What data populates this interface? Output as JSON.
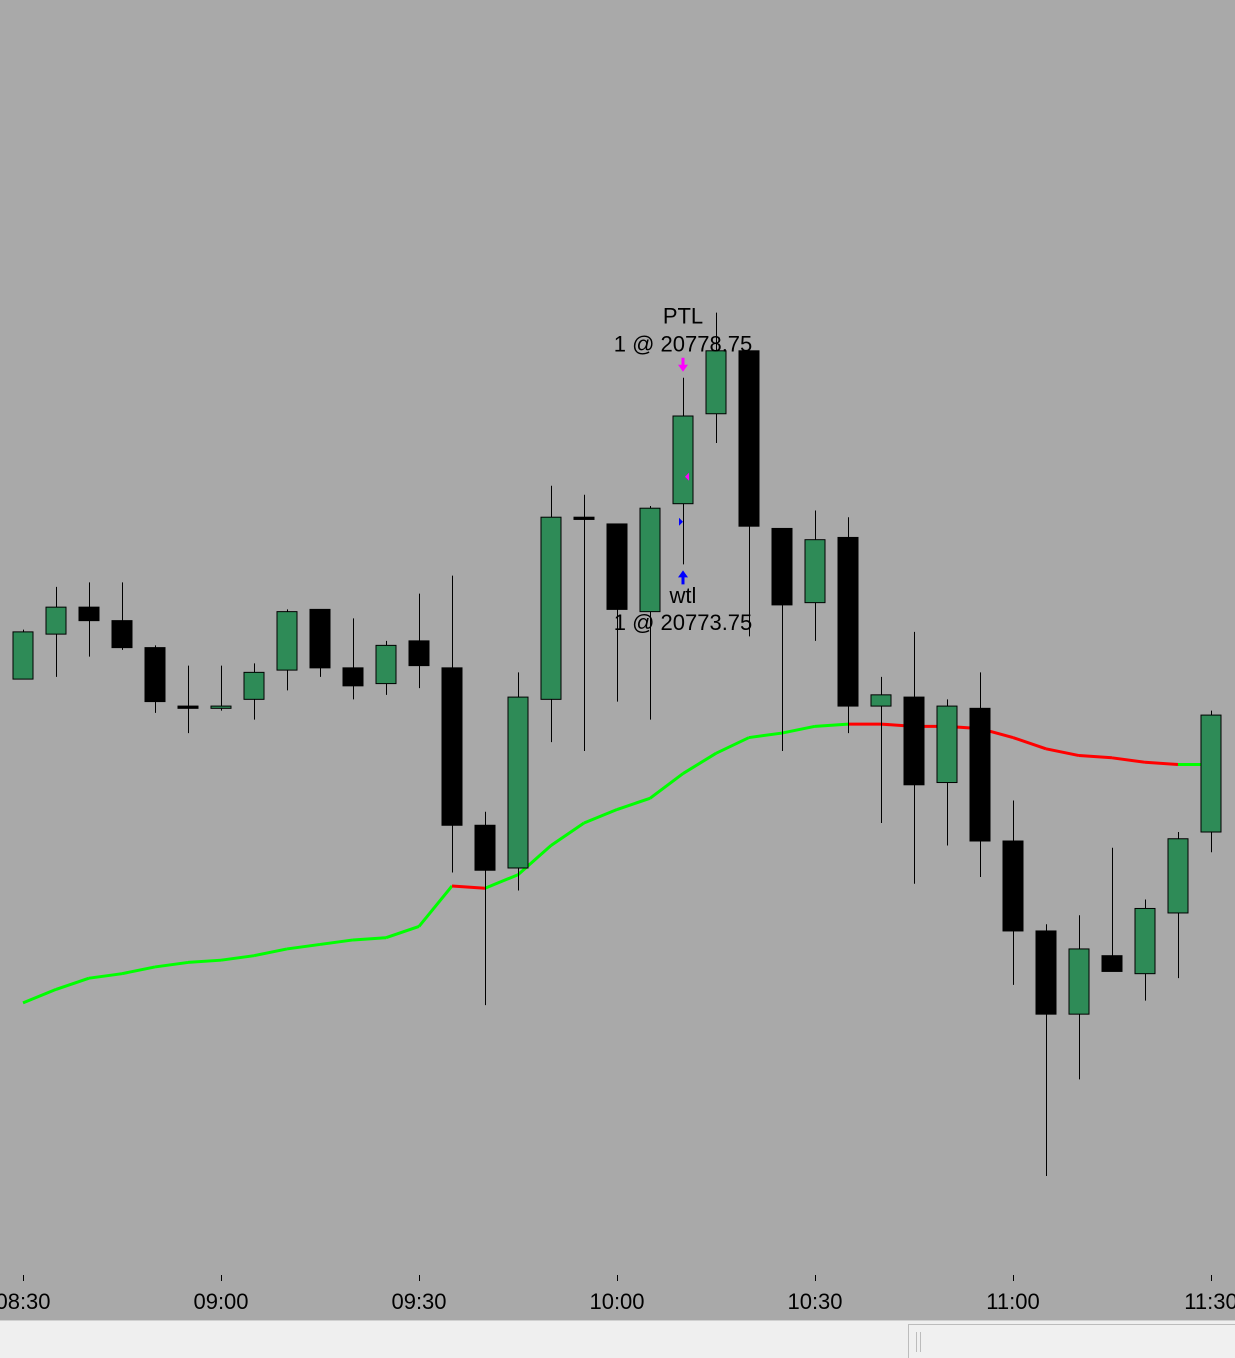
{
  "chart_data": {
    "type": "candlestick",
    "categories": [
      "08:30",
      null,
      null,
      null,
      null,
      null,
      "09:00",
      null,
      null,
      null,
      null,
      null,
      "09:30",
      null,
      null,
      null,
      null,
      null,
      "10:00",
      null,
      null,
      null,
      null,
      null,
      "10:30",
      null,
      null,
      null,
      null,
      null,
      "11:00",
      null,
      null,
      null,
      null,
      null,
      "11:30"
    ],
    "open": [
      20756.25,
      20761.25,
      20764.25,
      20762.75,
      20759.75,
      20753.25,
      20753,
      20754,
      20757.25,
      20764,
      20757.5,
      20755.75,
      20760.5,
      20757.5,
      20740,
      20735.25,
      20754,
      20774.25,
      20773.5,
      20763.75,
      20775.75,
      20785.75,
      20792.75,
      20773,
      20764.75,
      20772,
      20753.25,
      20754.25,
      20744.75,
      20753,
      20738.25,
      20728.25,
      20719,
      20725.5,
      20723.5,
      20730.25,
      20739.25
    ],
    "high": [
      20761.75,
      20766.5,
      20767,
      20767,
      20760,
      20757.75,
      20757.75,
      20758,
      20764,
      20764,
      20763,
      20760.5,
      20765.75,
      20767.75,
      20741.5,
      20757,
      20777.75,
      20776.75,
      20773.5,
      20775.5,
      20789.75,
      20797,
      20792.75,
      20773,
      20775,
      20774.25,
      20756.5,
      20761.5,
      20754,
      20757,
      20742.75,
      20729,
      20730,
      20737.5,
      20731.75,
      20739.25,
      20752.75
    ],
    "low": [
      20756.25,
      20756.5,
      20758.75,
      20759.5,
      20752.5,
      20750.25,
      20752.75,
      20751.75,
      20755,
      20756.5,
      20754,
      20754.5,
      20755.25,
      20734.75,
      20720,
      20732.75,
      20749.25,
      20748.25,
      20753.75,
      20751.75,
      20769,
      20782.5,
      20761,
      20748.25,
      20760.5,
      20750.25,
      20740.25,
      20733.5,
      20737.75,
      20734.25,
      20722.25,
      20701,
      20711.75,
      20723.75,
      20720.5,
      20723,
      20737
    ],
    "close": [
      20761.5,
      20764.25,
      20762.75,
      20759.75,
      20753.75,
      20753,
      20753.25,
      20757,
      20763.75,
      20757.5,
      20755.5,
      20760,
      20757.75,
      20740,
      20735,
      20754.25,
      20774.25,
      20774,
      20764,
      20775.25,
      20785.5,
      20792.75,
      20773.25,
      20764.5,
      20771.75,
      20753.25,
      20754.5,
      20744.5,
      20753.25,
      20738.25,
      20728.25,
      20719,
      20726.25,
      20723.75,
      20730.75,
      20738.5,
      20752.25
    ],
    "up_color": "#2e8b57",
    "down_color": "#000000",
    "line": {
      "values": [
        20720.25,
        20721.75,
        20723,
        20723.5,
        20724.25,
        20724.75,
        20725,
        20725.5,
        20726.25,
        20726.75,
        20727.25,
        20727.5,
        20728.75,
        20733.25,
        20733,
        20734.5,
        20737.75,
        20740.25,
        20741.75,
        20743,
        20745.75,
        20748,
        20749.75,
        20750.25,
        20751,
        20751.25,
        20751.25,
        20751,
        20751,
        20750.75,
        20749.75,
        20748.5,
        20747.75,
        20747.5,
        20747,
        20746.75,
        20746.75
      ],
      "segment_colors": [
        "#00ff00",
        "#00ff00",
        "#00ff00",
        "#00ff00",
        "#00ff00",
        "#00ff00",
        "#00ff00",
        "#00ff00",
        "#00ff00",
        "#00ff00",
        "#00ff00",
        "#00ff00",
        "#00ff00",
        "#ff0000",
        "#00ff00",
        "#00ff00",
        "#00ff00",
        "#00ff00",
        "#00ff00",
        "#00ff00",
        "#00ff00",
        "#00ff00",
        "#00ff00",
        "#00ff00",
        "#00ff00",
        "#ff0000",
        "#ff0000",
        "#ff0000",
        "#ff0000",
        "#ff0000",
        "#ff0000",
        "#ff0000",
        "#ff0000",
        "#ff0000",
        "#ff0000",
        "#00ff00"
      ]
    },
    "trades": [
      {
        "name": "wtl",
        "label": "1 @ 20773.75",
        "price": 20773.75,
        "color": "#0000ff",
        "side": "entry"
      },
      {
        "name": "PTL",
        "label": "1 @ 20778.75",
        "price": 20778.75,
        "color": "#ff00ff",
        "side": "exit"
      }
    ],
    "ylim": [
      20690,
      20831.75
    ]
  }
}
